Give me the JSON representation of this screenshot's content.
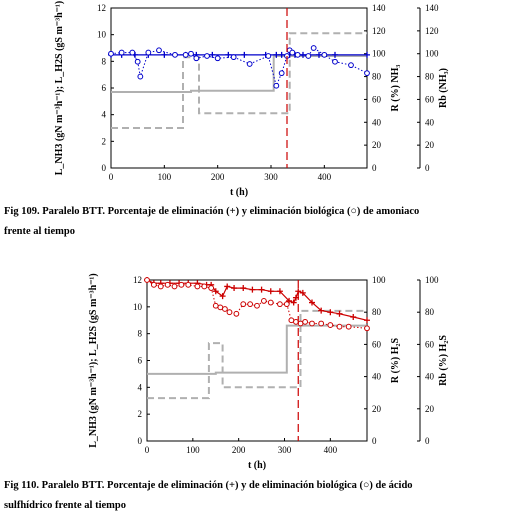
{
  "figures": [
    {
      "caption_line1": "Fig 109. Paralelo BTT. Porcentaje de eliminación (+) y eliminación biológica (○) de amoniaco",
      "caption_line2": "frente al tiempo"
    },
    {
      "caption_line1": "Fig 110. Paralelo BTT. Porcentaje de eliminación (+) y de eliminación biológica (○) de ácido",
      "caption_line2": "sulfhídrico frente al tiempo"
    }
  ],
  "chart_data": [
    {
      "type": "line",
      "xlabel": "t (h)",
      "ylabel_left": "L_NH3 (gN m⁻³h⁻¹); L_H2S (gS m⁻³h⁻¹)",
      "ylabel_right1": "R (%) NH₃",
      "ylabel_right2": "Rb (NH₃)",
      "xlim": [
        0,
        480
      ],
      "xticks": [
        0,
        100,
        200,
        300,
        400
      ],
      "ylim_left": [
        0,
        12
      ],
      "yticks_left": [
        0,
        2,
        4,
        6,
        8,
        10,
        12
      ],
      "ylim_right": [
        0,
        140
      ],
      "yticks_right": [
        0,
        20,
        40,
        60,
        80,
        100,
        120,
        140
      ],
      "marker_time": 330,
      "colors": {
        "primary": "#0000cc",
        "load_nh3": "#b0b0b0",
        "load_h2s": "#b0b0b0",
        "marker": "#cc0000"
      },
      "series": [
        {
          "role": "L_NH3",
          "style": "solid-gray",
          "axis": "left",
          "x": [
            0,
            150,
            150,
            305,
            305,
            480
          ],
          "y": [
            5.7,
            5.7,
            5.8,
            5.8,
            8.4,
            8.4
          ]
        },
        {
          "role": "L_H2S",
          "style": "dashed-gray",
          "axis": "left",
          "x": [
            0,
            135,
            135,
            165,
            165,
            335,
            335,
            480
          ],
          "y": [
            3.0,
            3.0,
            8.3,
            8.3,
            4.1,
            4.1,
            10.1,
            10.1
          ]
        },
        {
          "role": "R",
          "style": "plus-solid",
          "axis": "right",
          "x": [
            0,
            20,
            45,
            70,
            100,
            140,
            160,
            190,
            220,
            250,
            290,
            310,
            320,
            335,
            345,
            360,
            390,
            420,
            480
          ],
          "y": [
            99,
            99,
            99,
            99,
            99,
            99,
            99,
            99,
            99,
            99,
            99,
            99,
            99,
            99,
            99,
            99,
            99,
            99,
            99
          ]
        },
        {
          "role": "Rb",
          "style": "circle-dotted",
          "axis": "right",
          "x": [
            0,
            20,
            40,
            50,
            55,
            70,
            90,
            120,
            140,
            150,
            160,
            180,
            200,
            230,
            260,
            295,
            310,
            320,
            330,
            335,
            340,
            350,
            370,
            380,
            400,
            420,
            450,
            480
          ],
          "y": [
            100,
            101,
            101,
            93,
            80,
            101,
            103,
            99,
            99,
            100,
            96,
            98,
            96,
            97,
            91,
            98,
            72,
            83,
            98,
            103,
            101,
            99,
            98,
            105,
            99,
            93,
            90,
            83
          ]
        }
      ]
    },
    {
      "type": "line",
      "xlabel": "t (h)",
      "ylabel_left": "L_NH3 (gN m⁻³h⁻¹); L_H2S (gS m⁻³h⁻¹)",
      "ylabel_right1": "R (%) H₂S",
      "ylabel_right2": "Rb (%) H₂S",
      "xlim": [
        0,
        480
      ],
      "xticks": [
        0,
        100,
        200,
        300,
        400
      ],
      "ylim_left": [
        0,
        12
      ],
      "yticks_left": [
        0,
        2,
        4,
        6,
        8,
        10,
        12
      ],
      "ylim_right": [
        0,
        100
      ],
      "yticks_right": [
        0,
        20,
        40,
        60,
        80,
        100
      ],
      "marker_time": 330,
      "colors": {
        "primary": "#cc0000",
        "load_nh3": "#b0b0b0",
        "load_h2s": "#b0b0b0",
        "marker": "#cc0000"
      },
      "series": [
        {
          "role": "L_NH3",
          "style": "solid-gray",
          "axis": "left",
          "x": [
            0,
            150,
            150,
            305,
            305,
            480
          ],
          "y": [
            5.0,
            5.0,
            5.1,
            5.1,
            8.6,
            8.6
          ]
        },
        {
          "role": "L_H2S",
          "style": "dashed-gray",
          "axis": "left",
          "x": [
            0,
            135,
            135,
            165,
            165,
            335,
            335,
            480
          ],
          "y": [
            3.2,
            3.2,
            7.3,
            7.3,
            4.0,
            4.0,
            9.7,
            9.7
          ]
        },
        {
          "role": "R",
          "style": "plus-solid",
          "axis": "right",
          "x": [
            0,
            15,
            30,
            50,
            70,
            90,
            110,
            130,
            140,
            150,
            165,
            175,
            190,
            210,
            230,
            250,
            270,
            290,
            310,
            320,
            325,
            330,
            340,
            360,
            380,
            400,
            420,
            450,
            480
          ],
          "y": [
            100,
            98,
            98,
            98,
            98,
            98,
            98,
            97,
            97,
            93,
            90,
            96,
            95,
            95,
            94,
            94,
            93,
            93,
            87,
            86,
            89,
            93,
            92,
            86,
            81,
            80,
            79,
            77,
            75
          ]
        },
        {
          "role": "Rb",
          "style": "circle-dotted",
          "axis": "right",
          "x": [
            0,
            15,
            30,
            45,
            60,
            75,
            90,
            110,
            125,
            140,
            150,
            160,
            170,
            180,
            195,
            210,
            225,
            240,
            255,
            270,
            290,
            305,
            315,
            325,
            335,
            345,
            360,
            380,
            400,
            420,
            440,
            480
          ],
          "y": [
            100,
            97,
            96,
            97,
            96,
            97,
            97,
            96,
            96,
            95,
            84,
            83,
            82,
            80,
            79,
            85,
            85,
            84,
            87,
            86,
            85,
            85,
            75,
            74,
            73,
            74,
            73,
            73,
            72,
            71,
            71,
            70
          ]
        }
      ]
    }
  ]
}
